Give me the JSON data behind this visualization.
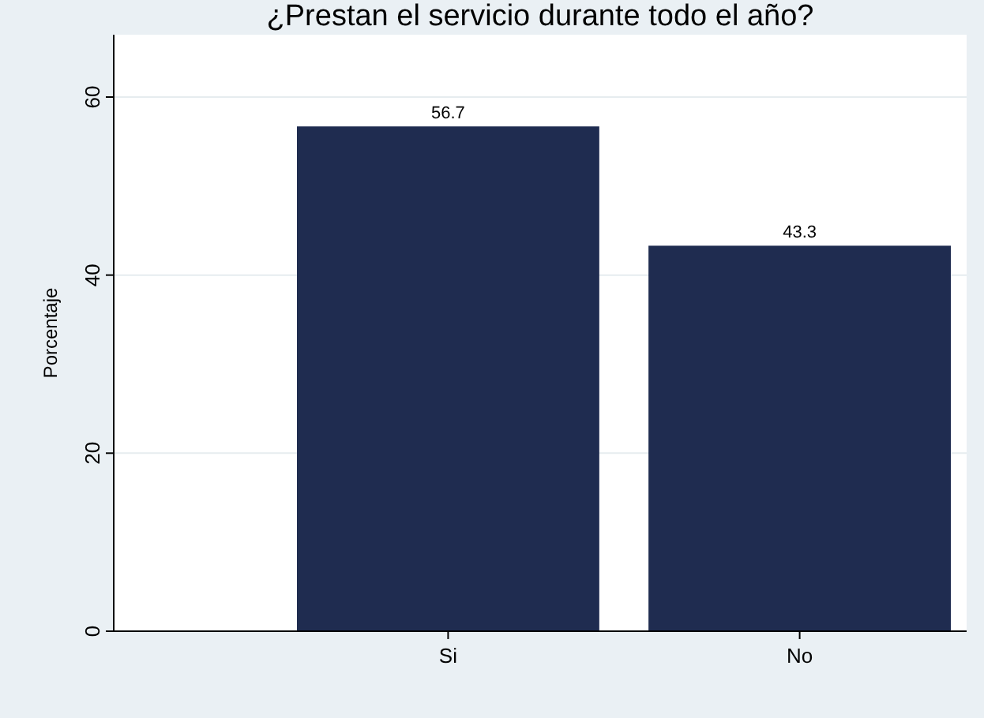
{
  "chart_data": {
    "type": "bar",
    "title": "¿Prestan el servicio durante todo el año?",
    "ylabel": "Porcentaje",
    "categories": [
      "Si",
      "No"
    ],
    "values": [
      56.7,
      43.3
    ],
    "color": "#1f2c50",
    "ylim": [
      0,
      67
    ],
    "yticks": [
      0,
      20,
      40,
      60
    ],
    "grid": "y",
    "data_labels": true
  }
}
